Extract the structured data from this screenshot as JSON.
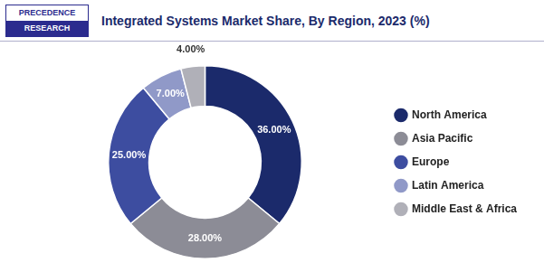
{
  "chart_data": {
    "type": "doughnut",
    "title": "Integrated Systems Market Share, By Region, 2023 (%)",
    "categories": [
      "North America",
      "Asia Pacific",
      "Europe",
      "Latin America",
      "Middle East & Africa"
    ],
    "values": [
      36.0,
      28.0,
      25.0,
      7.0,
      4.0
    ],
    "value_labels": [
      "36.00%",
      "28.00%",
      "25.00%",
      "7.00%",
      "4.00%"
    ],
    "colors": [
      "#1b2a6b",
      "#8c8c96",
      "#3d4da0",
      "#9099c8",
      "#b0b0b8"
    ],
    "data_labels": true,
    "legend": "right",
    "annotations": [
      "PRECEDENCE",
      "RESEARCH"
    ]
  }
}
